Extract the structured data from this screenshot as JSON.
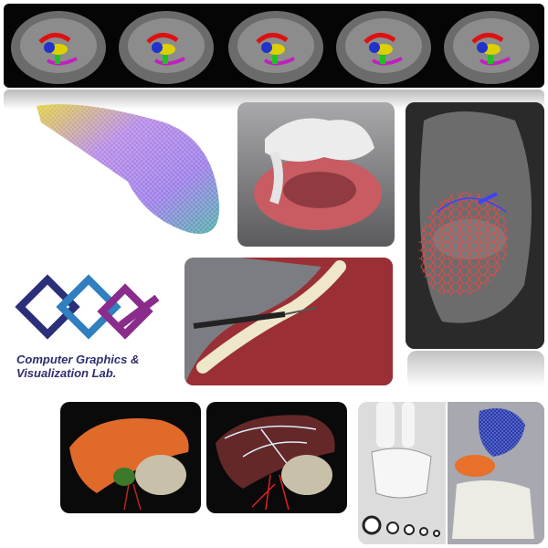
{
  "logo": {
    "line1": "Computer Graphics &",
    "line2": "Visualization Lab."
  },
  "colors": {
    "navy": "#2b2f7a",
    "blue": "#2f7fc1",
    "purple": "#8a2c8c",
    "mri_bg": "#050505"
  },
  "panels": {
    "mri": {
      "slices": 5
    },
    "surface": {
      "label": "colored-surface-mesh"
    },
    "bone": {
      "label": "bone-cup-render"
    },
    "heart": {
      "label": "heart-mesh-ct"
    },
    "teeth": {
      "label": "teeth-gum-drill"
    },
    "liver1": {
      "label": "liver-render"
    },
    "liver2": {
      "label": "liver-vessels-render"
    },
    "foot1": {
      "label": "foot-bones"
    },
    "foot2": {
      "label": "ankle-mesh"
    }
  }
}
